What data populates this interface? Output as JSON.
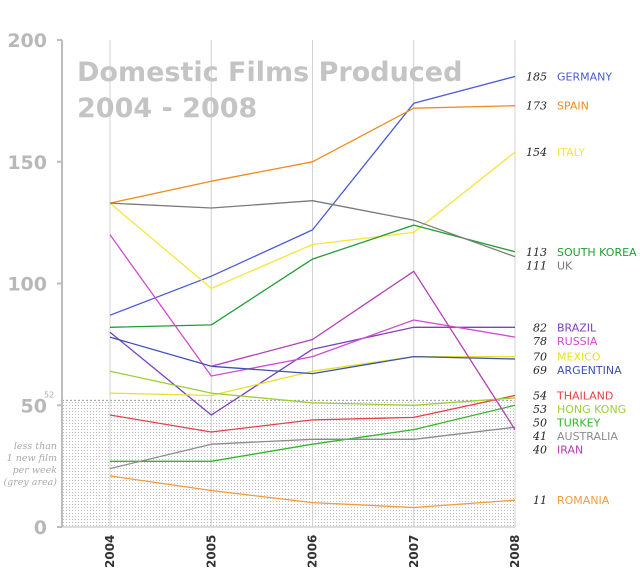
{
  "chart_data": {
    "type": "line",
    "title_lines": [
      "Domestic Films Produced",
      "2004 - 2008"
    ],
    "xlabel": "",
    "ylabel": "",
    "x": [
      "2004",
      "2005",
      "2006",
      "2007",
      "2008"
    ],
    "yticks": [
      "0",
      "50",
      "100",
      "150",
      "200"
    ],
    "ylim": [
      0,
      200
    ],
    "grid": false,
    "threshold": {
      "value": 52,
      "label": "52"
    },
    "grey_area_note": [
      "less than",
      "1 new film",
      "per week",
      "(grey area)"
    ],
    "series": [
      {
        "name": "GERMANY",
        "label": "185",
        "color": "#4a5bd6",
        "values": [
          87,
          103,
          122,
          174,
          185
        ]
      },
      {
        "name": "SPAIN",
        "label": "173",
        "color": "#f08c1e",
        "values": [
          133,
          142,
          150,
          172,
          173
        ]
      },
      {
        "name": "ITALY",
        "label": "154",
        "color": "#f5e63c",
        "values": [
          133,
          98,
          116,
          121,
          154
        ]
      },
      {
        "name": "SOUTH KOREA",
        "label": "113",
        "color": "#1f9e32",
        "values": [
          82,
          83,
          110,
          124,
          113
        ]
      },
      {
        "name": "UK",
        "label": "111",
        "color": "#7a7a7a",
        "values": [
          133,
          131,
          134,
          126,
          111
        ]
      },
      {
        "name": "BRAZIL",
        "label": "82",
        "color": "#7b3fc4",
        "values": [
          80,
          46,
          73,
          82,
          82
        ]
      },
      {
        "name": "RUSSIA",
        "label": "78",
        "color": "#d24ccf",
        "values": [
          120,
          62,
          70,
          85,
          78
        ]
      },
      {
        "name": "MEXICO",
        "label": "70",
        "color": "#e8e02a",
        "values": [
          55,
          54,
          64,
          70,
          70
        ]
      },
      {
        "name": "ARGENTINA",
        "label": "69",
        "color": "#3a52b4",
        "values": [
          78,
          66,
          63,
          70,
          69
        ]
      },
      {
        "name": "THAILAND",
        "label": "54",
        "color": "#ea3f47",
        "values": [
          46,
          39,
          44,
          45,
          54
        ]
      },
      {
        "name": "HONG KONG",
        "label": "53",
        "color": "#9bd136",
        "values": [
          64,
          55,
          51,
          50,
          53
        ]
      },
      {
        "name": "TURKEY",
        "label": "50",
        "color": "#33b82a",
        "values": [
          27,
          27,
          34,
          40,
          50
        ]
      },
      {
        "name": "AUSTRALIA",
        "label": "41",
        "color": "#8c8c8c",
        "values": [
          24,
          34,
          36,
          36,
          41
        ]
      },
      {
        "name": "IRAN",
        "label": "40",
        "color": "#b23fb4",
        "values": [
          null,
          66,
          77,
          105,
          40
        ]
      },
      {
        "name": "ROMANIA",
        "label": "11",
        "color": "#f59a3a",
        "values": [
          21,
          15,
          10,
          8,
          11
        ]
      }
    ]
  }
}
